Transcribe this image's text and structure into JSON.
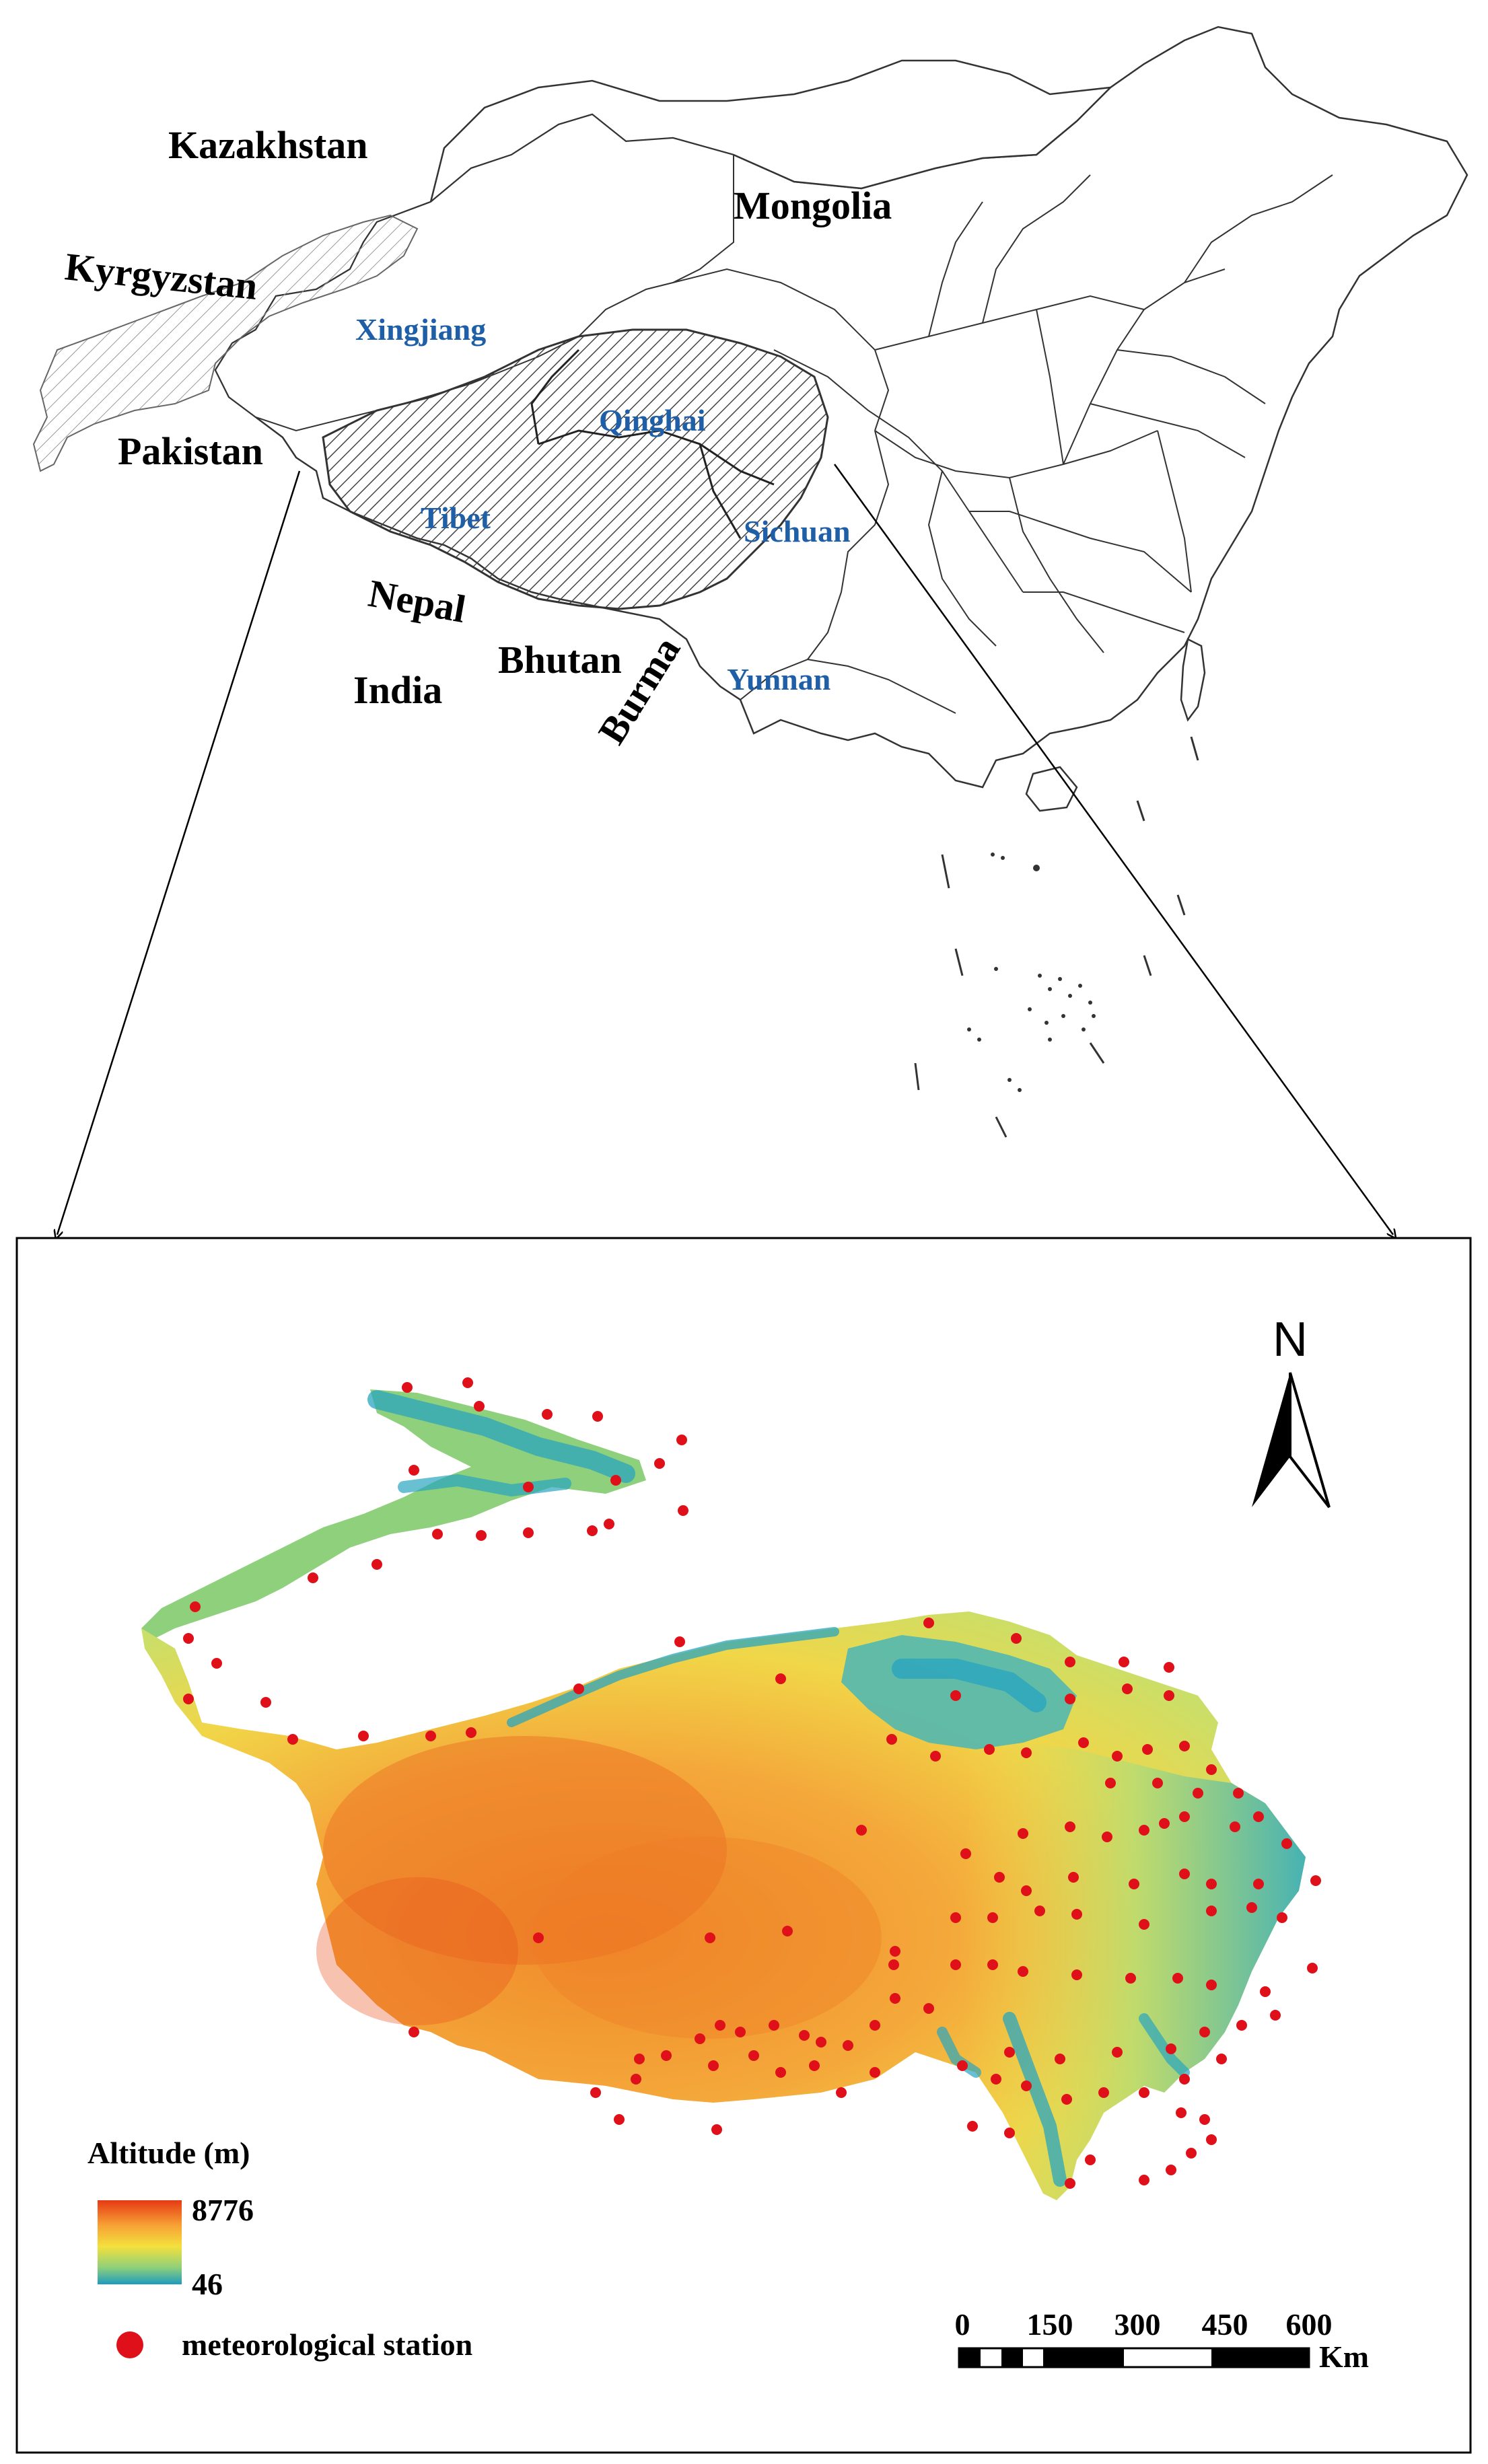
{
  "countries": {
    "kazakhstan": "Kazakhstan",
    "mongolia": "Mongolia",
    "kyrgyzstan": "Kyrgyzstan",
    "pakistan": "Pakistan",
    "nepal": "Nepal",
    "india": "India",
    "bhutan": "Bhutan",
    "burma": "Burma"
  },
  "provinces": {
    "xingjiang": "Xingjiang",
    "qinghai": "Qinghai",
    "tibet": "Tibet",
    "sichuan": "Sichuan",
    "yunnan": "Yunnan"
  },
  "north_arrow": "N",
  "legend": {
    "title": "Altitude (m)",
    "max": "8776",
    "min": "46",
    "station_label": "meteorological station",
    "gradient_colors": [
      "#e63a14",
      "#f7a235",
      "#f3e03d",
      "#8fd07a",
      "#1e9bbf"
    ],
    "station_color": "#e0101a"
  },
  "scale_bar": {
    "ticks": [
      "0",
      "150",
      "300",
      "450",
      "600"
    ],
    "unit": "Km"
  }
}
